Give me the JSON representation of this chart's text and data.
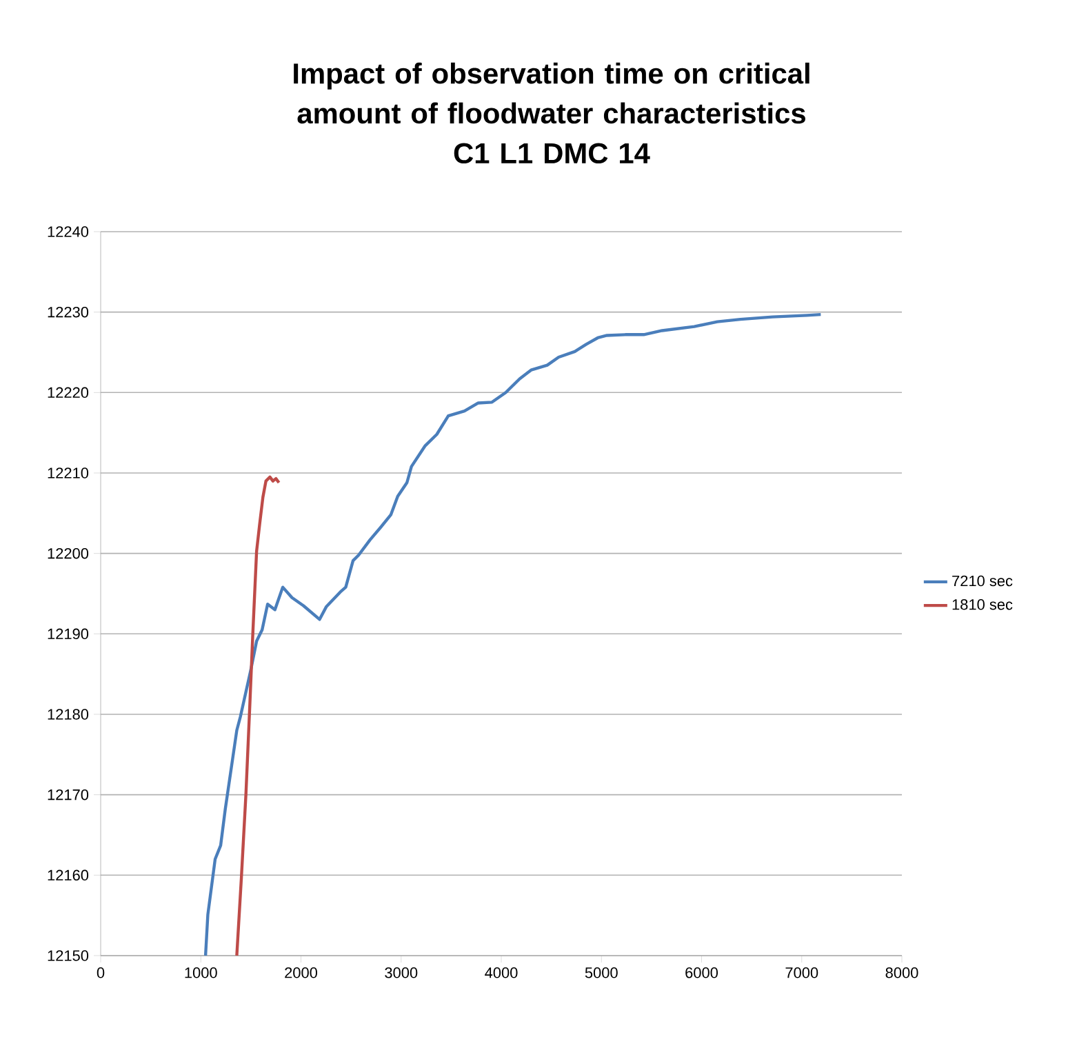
{
  "chart_data": {
    "type": "line",
    "title": "Impact of observation time on critical amount of floodwater characteristics",
    "subtitle": "C1 L1 DMC 14",
    "xlim": [
      0,
      8000
    ],
    "xticks": [
      0,
      1000,
      2000,
      3000,
      4000,
      5000,
      6000,
      7000,
      8000
    ],
    "ylim": [
      12150,
      12240
    ],
    "yticks": [
      12150,
      12160,
      12170,
      12180,
      12190,
      12200,
      12210,
      12220,
      12230,
      12240
    ],
    "grid": "y",
    "legend": "right",
    "series": [
      {
        "name": "7210 sec",
        "color": "#4a7ebb",
        "x": [
          1047,
          1070,
          1143,
          1198,
          1244,
          1359,
          1395,
          1497,
          1557,
          1612,
          1667,
          1740,
          1818,
          1910,
          2025,
          2186,
          2254,
          2392,
          2447,
          2520,
          2576,
          2690,
          2806,
          2897,
          2966,
          3058,
          3103,
          3241,
          3356,
          3471,
          3632,
          3770,
          3907,
          4045,
          4183,
          4298,
          4459,
          4573,
          4734,
          4848,
          4963,
          5055,
          5238,
          5423,
          5606,
          5927,
          6157,
          6387,
          6708,
          7052,
          7190
        ],
        "values": [
          12150,
          12155.1,
          12162,
          12163.7,
          12168.2,
          12178,
          12179.7,
          12185.4,
          12189.1,
          12190.5,
          12193.7,
          12193,
          12195.8,
          12194.5,
          12193.5,
          12191.8,
          12193.4,
          12195.2,
          12195.8,
          12199.1,
          12199.8,
          12201.7,
          12203.4,
          12204.8,
          12207.1,
          12208.8,
          12210.8,
          12213.4,
          12214.8,
          12217.1,
          12217.7,
          12218.7,
          12218.8,
          12220,
          12221.7,
          12222.8,
          12223.4,
          12224.4,
          12225.1,
          12226,
          12226.8,
          12227.1,
          12227.2,
          12227.2,
          12227.7,
          12228.2,
          12228.8,
          12229.1,
          12229.4,
          12229.6,
          12229.7
        ]
      },
      {
        "name": "1810 sec",
        "color": "#be4b48",
        "x": [
          1359,
          1405,
          1450,
          1488,
          1519,
          1557,
          1588,
          1620,
          1650,
          1690,
          1720,
          1750,
          1780
        ],
        "values": [
          12150,
          12159.7,
          12170,
          12180.8,
          12190,
          12200.3,
          12203.7,
          12207,
          12209,
          12209.5,
          12209,
          12209.3,
          12208.8
        ]
      }
    ]
  }
}
